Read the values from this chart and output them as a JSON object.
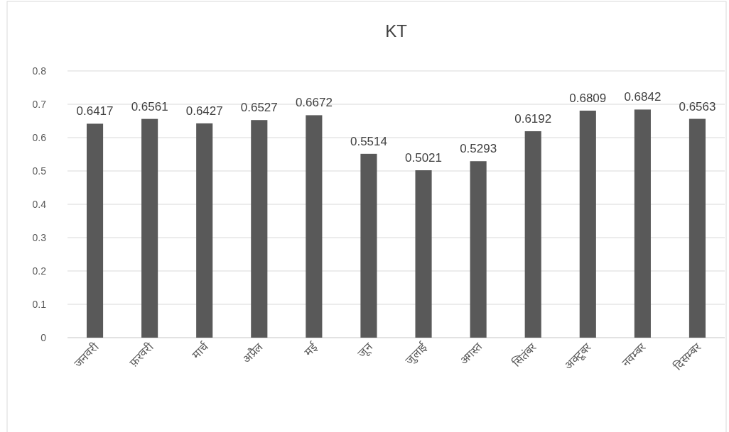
{
  "chart_data": {
    "type": "bar",
    "title": "KT",
    "categories": [
      "जनवरी",
      "फ़रवरी",
      "मार्च",
      "अप्रैल",
      "मई",
      "जून",
      "जुलाई",
      "अगस्त",
      "सितंबर",
      "अक्टूबर",
      "नवम्बर",
      "दिसम्बर"
    ],
    "values": [
      0.6417,
      0.6561,
      0.6427,
      0.6527,
      0.6672,
      0.5514,
      0.5021,
      0.5293,
      0.6192,
      0.6809,
      0.6842,
      0.6563
    ],
    "color": "#595959",
    "ylim": [
      0,
      0.8
    ],
    "yticks": [
      0,
      0.1,
      0.2,
      0.3,
      0.4,
      0.5,
      0.6,
      0.7,
      0.8
    ],
    "grid": "y",
    "data_labels": true
  }
}
